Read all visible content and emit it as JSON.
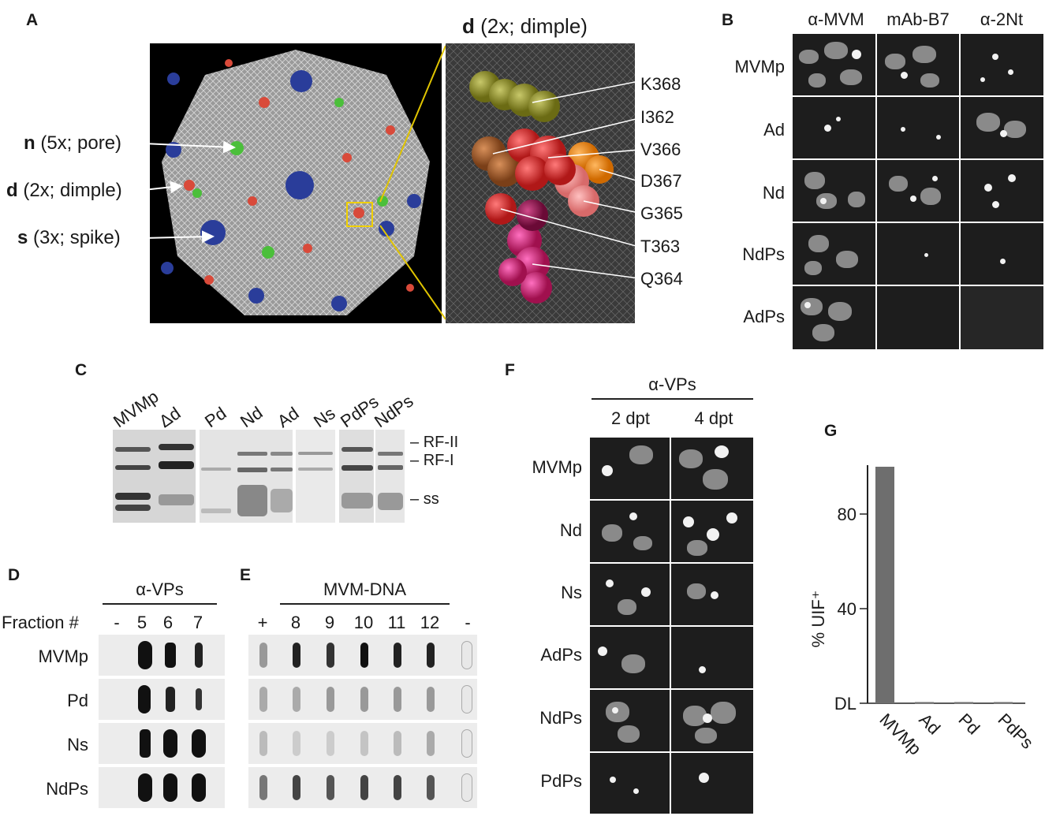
{
  "panel_labels": {
    "A": "A",
    "B": "B",
    "C": "C",
    "D": "D",
    "E": "E",
    "F": "F",
    "G": "G"
  },
  "panel_a": {
    "zoom_title": {
      "letter": "d",
      "rest": "(2x; dimple)"
    },
    "left_labels": [
      {
        "letter": "n",
        "rest": "(5x; pore)"
      },
      {
        "letter": "d",
        "rest": "(2x; dimple)"
      },
      {
        "letter": "s",
        "rest": "(3x; spike)"
      }
    ],
    "residues": [
      "K368",
      "I362",
      "V366",
      "D367",
      "G365",
      "T363",
      "Q364"
    ]
  },
  "panel_b": {
    "columns": [
      "α-MVM",
      "mAb-B7",
      "α-2Nt"
    ],
    "rows": [
      "MVMp",
      "Ad",
      "Nd",
      "NdPs",
      "AdPs"
    ]
  },
  "panel_c": {
    "lanes": [
      "MVMp",
      "Δd",
      "Pd",
      "Nd",
      "Ad",
      "Ns",
      "PdPs",
      "NdPs"
    ],
    "bands": [
      "RF-II",
      "RF-I",
      "ss"
    ]
  },
  "panel_d": {
    "header": "α-VPs",
    "fraction_label": "Fraction #",
    "fractions": [
      "-",
      "5",
      "6",
      "7"
    ],
    "rows": [
      "MVMp",
      "Pd",
      "Ns",
      "NdPs"
    ]
  },
  "panel_e": {
    "header": "MVM-DNA",
    "fractions": [
      "+",
      "8",
      "9",
      "10",
      "11",
      "12",
      "-"
    ]
  },
  "panel_f": {
    "header": "α-VPs",
    "columns": [
      "2 dpt",
      "4 dpt"
    ],
    "rows": [
      "MVMp",
      "Nd",
      "Ns",
      "AdPs",
      "NdPs",
      "PdPs"
    ]
  },
  "chart_data": {
    "type": "bar",
    "categories": [
      "MVMp",
      "Ad",
      "Pd",
      "PdPs"
    ],
    "values": [
      100,
      0.5,
      0.5,
      0.5
    ],
    "ylabel": "% UIF⁺",
    "yticks": [
      "DL",
      "40",
      "80"
    ],
    "ylim": [
      0,
      100
    ],
    "bar_color": "#6e6e6e"
  }
}
